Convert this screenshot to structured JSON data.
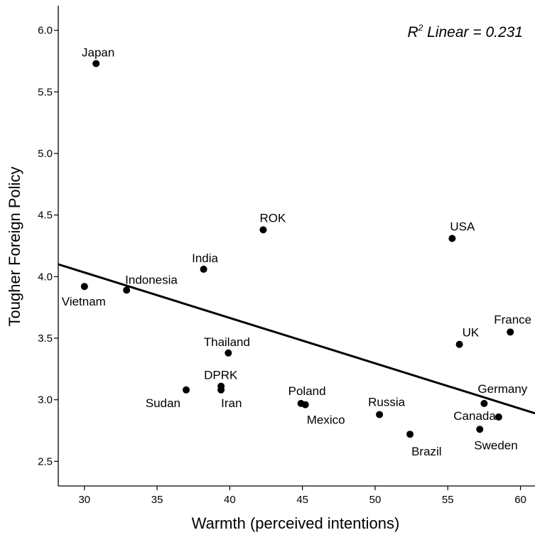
{
  "chart_data": {
    "type": "scatter",
    "xlabel": "Warmth (perceived intentions)",
    "ylabel": "Tougher Foreign Policy",
    "xlim": [
      28.2,
      61.0
    ],
    "ylim": [
      2.3,
      6.2
    ],
    "xticks": [
      "30",
      "35",
      "40",
      "45",
      "50",
      "55",
      "60"
    ],
    "yticks": [
      "2.5",
      "3.0",
      "3.5",
      "4.0",
      "4.5",
      "5.0",
      "5.5",
      "6.0"
    ],
    "grid": false,
    "legend": "none",
    "annotation": {
      "r": "R",
      "sup": "2",
      "rest": " Linear = 0.231"
    },
    "fit_line": {
      "y_at_x_min": 4.1,
      "y_at_x_max": 2.89
    },
    "points": [
      {
        "label": "Japan",
        "x": 30.8,
        "y": 5.73
      },
      {
        "label": "Vietnam",
        "x": 30.0,
        "y": 3.92
      },
      {
        "label": "Indonesia",
        "x": 32.9,
        "y": 3.89
      },
      {
        "label": "India",
        "x": 38.2,
        "y": 4.06
      },
      {
        "label": "ROK",
        "x": 42.3,
        "y": 4.38
      },
      {
        "label": "Thailand",
        "x": 39.9,
        "y": 3.38
      },
      {
        "label": "DPRK",
        "x": 39.4,
        "y": 3.11
      },
      {
        "label": "Iran",
        "x": 39.4,
        "y": 3.08
      },
      {
        "label": "Sudan",
        "x": 37.0,
        "y": 3.08
      },
      {
        "label": "Poland",
        "x": 44.9,
        "y": 2.97
      },
      {
        "label": "Mexico",
        "x": 45.2,
        "y": 2.96
      },
      {
        "label": "Russia",
        "x": 50.3,
        "y": 2.88
      },
      {
        "label": "Brazil",
        "x": 52.4,
        "y": 2.72
      },
      {
        "label": "USA",
        "x": 55.3,
        "y": 4.31
      },
      {
        "label": "UK",
        "x": 55.8,
        "y": 3.45
      },
      {
        "label": "France",
        "x": 59.3,
        "y": 3.55
      },
      {
        "label": "Germany",
        "x": 57.5,
        "y": 2.97
      },
      {
        "label": "Canada",
        "x": 58.5,
        "y": 2.86
      },
      {
        "label": "Sweden",
        "x": 57.2,
        "y": 2.76
      }
    ]
  }
}
